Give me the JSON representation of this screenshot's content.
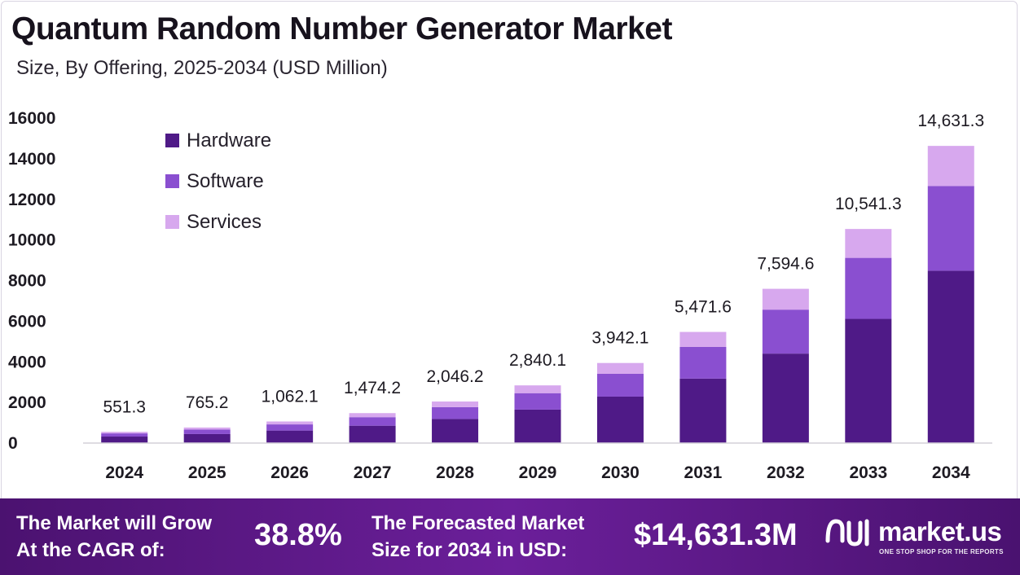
{
  "chart_data": {
    "type": "bar",
    "stacked": true,
    "title": "Quantum Random Number Generator Market",
    "subtitle": "Size, By Offering, 2025-2034 (USD Million)",
    "categories": [
      "2024",
      "2025",
      "2026",
      "2027",
      "2028",
      "2029",
      "2030",
      "2031",
      "2032",
      "2033",
      "2034"
    ],
    "series": [
      {
        "name": "Hardware",
        "color": "#4f1a87",
        "values": [
          319.8,
          443.8,
          616.0,
          855.0,
          1186.8,
          1647.3,
          2286.4,
          3173.5,
          4404.9,
          6114.0,
          8486.2
        ]
      },
      {
        "name": "Software",
        "color": "#8a4fd0",
        "values": [
          157.1,
          218.1,
          302.7,
          420.1,
          583.2,
          809.4,
          1123.5,
          1559.4,
          2164.5,
          3004.3,
          4169.9
        ]
      },
      {
        "name": "Services",
        "color": "#d7a8ee",
        "values": [
          74.4,
          103.3,
          143.4,
          199.1,
          276.2,
          383.4,
          532.2,
          738.7,
          1025.2,
          1423.0,
          1975.2
        ]
      }
    ],
    "totals": [
      551.3,
      765.2,
      1062.1,
      1474.2,
      2046.2,
      2840.1,
      3942.1,
      5471.6,
      7594.6,
      10541.3,
      14631.3
    ],
    "total_labels": [
      "551.3",
      "765.2",
      "1,062.1",
      "1,474.2",
      "2,046.2",
      "2,840.1",
      "3,942.1",
      "5,471.6",
      "7,594.6",
      "10,541.3",
      "14,631.3"
    ],
    "yticks": [
      "0",
      "2000",
      "4000",
      "6000",
      "8000",
      "10000",
      "12000",
      "14000",
      "16000"
    ],
    "ylim": [
      0,
      16000
    ],
    "xlabel": "",
    "ylabel": "",
    "legend_position": "top-left",
    "grid": false
  },
  "footer": {
    "cagr_text_line1": "The Market will Grow",
    "cagr_text_line2": "At the CAGR of:",
    "cagr_value": "38.8%",
    "forecast_text_line1": "The Forecasted Market",
    "forecast_text_line2": "Size for 2034 in USD:",
    "forecast_value": "$14,631.3M",
    "brand_name": "market.us",
    "brand_tagline": "ONE STOP SHOP FOR THE REPORTS"
  }
}
